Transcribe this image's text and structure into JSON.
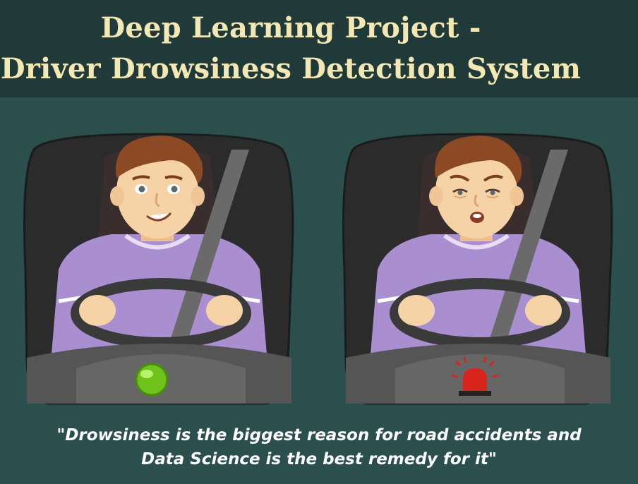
{
  "header": {
    "title_line1": "Deep Learning Project -",
    "title_line2": "Driver Drowsiness Detection System"
  },
  "panels": [
    {
      "state": "alert",
      "face": "smiling-awake",
      "indicator": "green-light-icon",
      "indicator_color": "#7ed321"
    },
    {
      "state": "drowsy",
      "face": "sleepy-tired",
      "indicator": "red-siren-icon",
      "indicator_color": "#d9241b"
    }
  ],
  "caption": {
    "line1": "\"Drowsiness is the biggest reason for road accidents and",
    "line2": "Data Science is the best remedy for it\""
  },
  "colors": {
    "background": "#2a4f4d",
    "header_bg": "#1f3a38",
    "title": "#f3e7b4",
    "shirt": "#a98fd0",
    "hair": "#8b4a24",
    "skin": "#f6d3a6",
    "car_interior": "#2b2b2b"
  }
}
